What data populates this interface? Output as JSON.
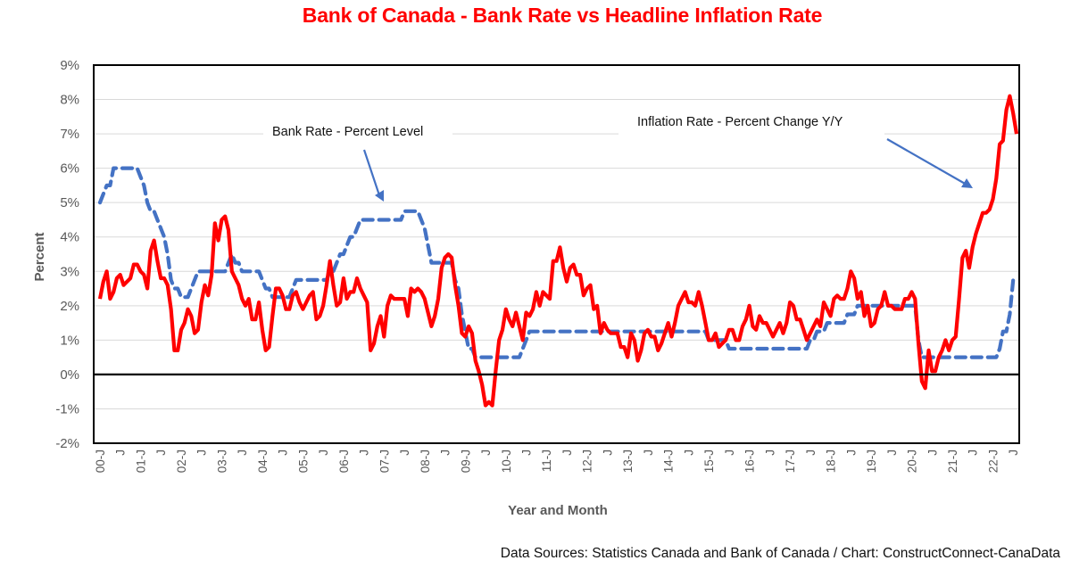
{
  "chart_data": {
    "type": "line",
    "title": "Bank of Canada - Bank Rate vs Headline Inflation Rate",
    "xlabel": "Year and Month",
    "ylabel": "Percent",
    "ylim": [
      -2,
      9
    ],
    "yticks": [
      "-2%",
      "-1%",
      "0%",
      "1%",
      "2%",
      "3%",
      "4%",
      "5%",
      "6%",
      "7%",
      "8%",
      "9%"
    ],
    "yticks_values": [
      -2,
      -1,
      0,
      1,
      2,
      3,
      4,
      5,
      6,
      7,
      8,
      9
    ],
    "x_start": "2000-01",
    "x_end": "2022-08",
    "xtick_labels": [
      "00-J",
      "J",
      "01-J",
      "J",
      "02-J",
      "J",
      "03-J",
      "J",
      "04-J",
      "J",
      "05-J",
      "J",
      "06-J",
      "J",
      "07-J",
      "J",
      "08-J",
      "J",
      "09-J",
      "J",
      "10-J",
      "J",
      "11-J",
      "J",
      "12-J",
      "J",
      "13-J",
      "J",
      "14-J",
      "J",
      "15-J",
      "J",
      "16-J",
      "J",
      "17-J",
      "J",
      "18-J",
      "J",
      "19-J",
      "J",
      "20-J",
      "J",
      "21-J",
      "J",
      "22-J",
      "J"
    ],
    "grid": true,
    "zero_line": true,
    "annotations": [
      {
        "text": "Bank Rate - Percent Level",
        "points_to": "Bank Rate series near 2007"
      },
      {
        "text": "Inflation Rate  - Percent Change Y/Y",
        "points_to": "Inflation series near 2021"
      }
    ],
    "series": [
      {
        "name": "Bank Rate - Percent Level",
        "color": "#4472c4",
        "style": "dashed",
        "values": [
          5.0,
          5.25,
          5.5,
          5.5,
          6.0,
          6.0,
          6.0,
          6.0,
          6.0,
          6.0,
          6.0,
          6.0,
          5.75,
          5.5,
          5.0,
          4.75,
          4.75,
          4.5,
          4.25,
          4.0,
          3.5,
          2.75,
          2.5,
          2.5,
          2.25,
          2.25,
          2.25,
          2.5,
          2.75,
          3.0,
          3.0,
          3.0,
          3.0,
          3.0,
          3.0,
          3.0,
          3.0,
          3.0,
          3.25,
          3.5,
          3.25,
          3.25,
          3.0,
          3.0,
          3.0,
          3.0,
          3.0,
          3.0,
          2.75,
          2.5,
          2.5,
          2.25,
          2.25,
          2.25,
          2.25,
          2.25,
          2.25,
          2.5,
          2.75,
          2.75,
          2.75,
          2.75,
          2.75,
          2.75,
          2.75,
          2.75,
          2.75,
          2.75,
          3.0,
          3.0,
          3.25,
          3.5,
          3.5,
          3.75,
          4.0,
          4.0,
          4.25,
          4.5,
          4.5,
          4.5,
          4.5,
          4.5,
          4.5,
          4.5,
          4.5,
          4.5,
          4.5,
          4.5,
          4.5,
          4.5,
          4.75,
          4.75,
          4.75,
          4.75,
          4.75,
          4.5,
          4.25,
          3.75,
          3.25,
          3.25,
          3.25,
          3.25,
          3.25,
          3.25,
          3.25,
          2.75,
          2.5,
          1.75,
          1.25,
          0.75,
          0.75,
          0.5,
          0.5,
          0.5,
          0.5,
          0.5,
          0.5,
          0.5,
          0.5,
          0.5,
          0.5,
          0.5,
          0.5,
          0.5,
          0.5,
          0.75,
          1.0,
          1.25,
          1.25,
          1.25,
          1.25,
          1.25,
          1.25,
          1.25,
          1.25,
          1.25,
          1.25,
          1.25,
          1.25,
          1.25,
          1.25,
          1.25,
          1.25,
          1.25,
          1.25,
          1.25,
          1.25,
          1.25,
          1.25,
          1.25,
          1.25,
          1.25,
          1.25,
          1.25,
          1.25,
          1.25,
          1.25,
          1.25,
          1.25,
          1.25,
          1.25,
          1.25,
          1.25,
          1.25,
          1.25,
          1.25,
          1.25,
          1.25,
          1.25,
          1.25,
          1.25,
          1.25,
          1.25,
          1.25,
          1.25,
          1.25,
          1.25,
          1.25,
          1.25,
          1.25,
          1.0,
          1.0,
          1.0,
          1.0,
          1.0,
          1.0,
          0.75,
          0.75,
          0.75,
          0.75,
          0.75,
          0.75,
          0.75,
          0.75,
          0.75,
          0.75,
          0.75,
          0.75,
          0.75,
          0.75,
          0.75,
          0.75,
          0.75,
          0.75,
          0.75,
          0.75,
          0.75,
          0.75,
          0.75,
          0.75,
          1.0,
          1.0,
          1.25,
          1.25,
          1.25,
          1.5,
          1.5,
          1.5,
          1.5,
          1.5,
          1.5,
          1.75,
          1.75,
          1.75,
          2.0,
          2.0,
          2.0,
          2.0,
          2.0,
          2.0,
          2.0,
          2.0,
          2.0,
          2.0,
          2.0,
          2.0,
          2.0,
          2.0,
          2.0,
          2.0,
          2.0,
          2.0,
          1.0,
          0.5,
          0.5,
          0.5,
          0.5,
          0.5,
          0.5,
          0.5,
          0.5,
          0.5,
          0.5,
          0.5,
          0.5,
          0.5,
          0.5,
          0.5,
          0.5,
          0.5,
          0.5,
          0.5,
          0.5,
          0.5,
          0.5,
          0.5,
          0.75,
          1.25,
          1.25,
          1.75,
          2.75,
          2.75
        ]
      },
      {
        "name": "Inflation Rate - Percent Change Y/Y",
        "color": "#ff0000",
        "style": "solid",
        "values": [
          2.2,
          2.7,
          3.0,
          2.2,
          2.4,
          2.8,
          2.9,
          2.6,
          2.7,
          2.8,
          3.2,
          3.2,
          3.0,
          2.9,
          2.5,
          3.6,
          3.9,
          3.3,
          2.8,
          2.8,
          2.6,
          1.9,
          0.7,
          0.7,
          1.3,
          1.5,
          1.9,
          1.7,
          1.2,
          1.3,
          2.1,
          2.6,
          2.3,
          2.9,
          4.4,
          3.9,
          4.5,
          4.6,
          4.2,
          3.0,
          2.8,
          2.6,
          2.2,
          2.0,
          2.2,
          1.6,
          1.6,
          2.1,
          1.3,
          0.7,
          0.8,
          1.7,
          2.5,
          2.5,
          2.3,
          1.9,
          1.9,
          2.3,
          2.4,
          2.1,
          1.9,
          2.1,
          2.3,
          2.4,
          1.6,
          1.7,
          2.0,
          2.6,
          3.3,
          2.6,
          2.0,
          2.1,
          2.8,
          2.2,
          2.4,
          2.4,
          2.8,
          2.5,
          2.3,
          2.1,
          0.7,
          0.9,
          1.4,
          1.7,
          1.1,
          2.0,
          2.3,
          2.2,
          2.2,
          2.2,
          2.2,
          1.7,
          2.5,
          2.4,
          2.5,
          2.4,
          2.2,
          1.8,
          1.4,
          1.7,
          2.2,
          3.1,
          3.4,
          3.5,
          3.4,
          2.6,
          2.0,
          1.2,
          1.1,
          1.4,
          1.2,
          0.4,
          0.1,
          -0.3,
          -0.9,
          -0.8,
          -0.9,
          0.1,
          1.0,
          1.3,
          1.9,
          1.6,
          1.4,
          1.8,
          1.4,
          1.0,
          1.8,
          1.7,
          1.9,
          2.4,
          2.0,
          2.4,
          2.3,
          2.2,
          3.3,
          3.3,
          3.7,
          3.1,
          2.7,
          3.1,
          3.2,
          2.9,
          2.9,
          2.3,
          2.5,
          2.6,
          1.9,
          2.0,
          1.2,
          1.5,
          1.3,
          1.2,
          1.2,
          1.2,
          0.8,
          0.8,
          0.5,
          1.2,
          1.0,
          0.4,
          0.7,
          1.2,
          1.3,
          1.1,
          1.1,
          0.7,
          0.9,
          1.2,
          1.5,
          1.1,
          1.5,
          2.0,
          2.2,
          2.4,
          2.1,
          2.1,
          2.0,
          2.4,
          2.0,
          1.5,
          1.0,
          1.0,
          1.2,
          0.8,
          0.9,
          1.0,
          1.3,
          1.3,
          1.0,
          1.0,
          1.4,
          1.6,
          2.0,
          1.4,
          1.3,
          1.7,
          1.5,
          1.5,
          1.3,
          1.1,
          1.3,
          1.5,
          1.2,
          1.5,
          2.1,
          2.0,
          1.6,
          1.6,
          1.3,
          1.0,
          1.2,
          1.4,
          1.6,
          1.4,
          2.1,
          1.9,
          1.7,
          2.2,
          2.3,
          2.2,
          2.2,
          2.5,
          3.0,
          2.8,
          2.2,
          2.4,
          1.7,
          2.0,
          1.4,
          1.5,
          1.9,
          2.0,
          2.4,
          2.0,
          2.0,
          1.9,
          1.9,
          1.9,
          2.2,
          2.2,
          2.4,
          2.2,
          0.9,
          -0.2,
          -0.4,
          0.7,
          0.1,
          0.1,
          0.5,
          0.7,
          1.0,
          0.7,
          1.0,
          1.1,
          2.2,
          3.4,
          3.6,
          3.1,
          3.7,
          4.1,
          4.4,
          4.7,
          4.7,
          4.8,
          5.1,
          5.7,
          6.7,
          6.8,
          7.7,
          8.1,
          7.6,
          7.0
        ]
      }
    ]
  },
  "footer": {
    "source": "Data Sources:  Statistics Canada and Bank of Canada / Chart: ConstructConnect-CanaData"
  }
}
